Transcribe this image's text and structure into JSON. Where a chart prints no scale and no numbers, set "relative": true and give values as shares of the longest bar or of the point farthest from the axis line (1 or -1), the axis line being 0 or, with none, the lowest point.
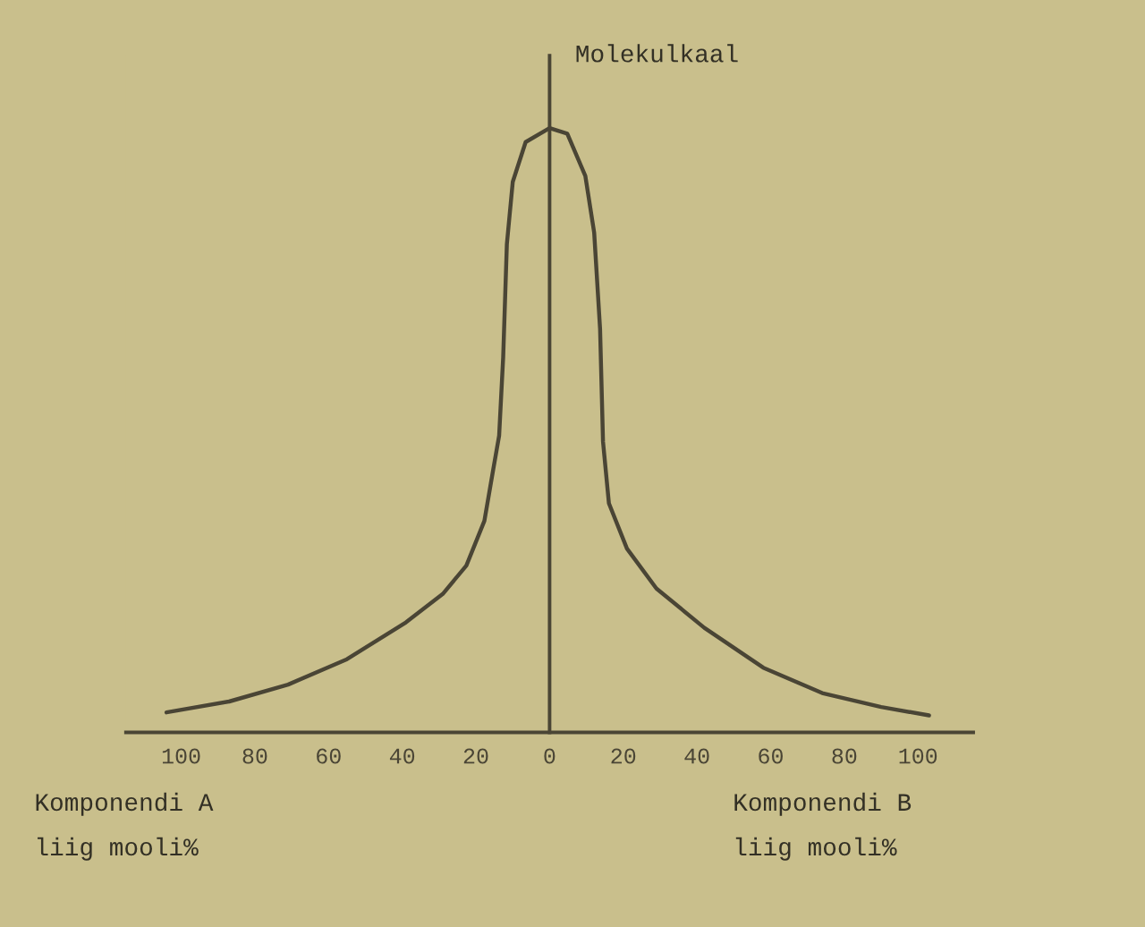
{
  "chart_data": {
    "type": "line",
    "relative": true,
    "ylabel": "Molekulkaal",
    "annotations": [
      "Komponendi A\nliig mooli%",
      "Komponendi B\nliig mooli%"
    ],
    "xlim": [
      -115,
      115
    ],
    "xticks": [
      {
        "value": -100,
        "label": "100"
      },
      {
        "value": -80,
        "label": "80"
      },
      {
        "value": -60,
        "label": "60"
      },
      {
        "value": -40,
        "label": "40"
      },
      {
        "value": -20,
        "label": "20"
      },
      0,
      20,
      40,
      60,
      80,
      100
    ],
    "series": [
      {
        "color": "#4a4535",
        "x": [
          -104,
          -87,
          -71,
          -55,
          -39,
          -29,
          -22.6,
          -17.7,
          -15.3,
          -13.7,
          -12.6,
          -11.6,
          -10,
          -6.5,
          0,
          4.8,
          9.7,
          12.1,
          13.7,
          14.5,
          16.1,
          21,
          29,
          42,
          58,
          74,
          90,
          103
        ],
        "values": [
          0.033,
          0.051,
          0.079,
          0.121,
          0.182,
          0.229,
          0.276,
          0.35,
          0.435,
          0.491,
          0.621,
          0.808,
          0.911,
          0.977,
          1,
          0.991,
          0.921,
          0.827,
          0.668,
          0.481,
          0.379,
          0.304,
          0.238,
          0.173,
          0.107,
          0.065,
          0.042,
          0.028
        ]
      }
    ]
  }
}
